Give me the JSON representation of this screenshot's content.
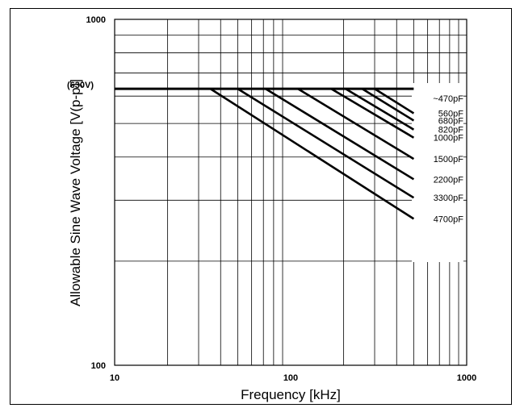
{
  "chart_data": {
    "type": "line",
    "title": "",
    "xlabel": "Frequency [kHz]",
    "ylabel": "Allowable Sine Wave Voltage [V(p-p)]",
    "x_scale": "log",
    "y_scale": "log",
    "xlim": [
      10,
      1000
    ],
    "ylim": [
      100,
      1000
    ],
    "x_ticks": [
      "10",
      "100",
      "1000"
    ],
    "y_ticks": [
      "100",
      "1000"
    ],
    "grid": true,
    "limit_line": {
      "label": "(630V)",
      "value": 630
    },
    "colors": {
      "line": "#000000",
      "grid": "#000000",
      "background": "#ffffff"
    },
    "series": [
      {
        "name": "~470pF",
        "points": [
          [
            10,
            630
          ],
          [
            500,
            630
          ]
        ]
      },
      {
        "name": "560pF",
        "points": [
          [
            300,
            630
          ],
          [
            500,
            535
          ]
        ]
      },
      {
        "name": "680pF",
        "points": [
          [
            255,
            630
          ],
          [
            500,
            510
          ]
        ]
      },
      {
        "name": "820pF",
        "points": [
          [
            205,
            630
          ],
          [
            500,
            480
          ]
        ]
      },
      {
        "name": "1000pF",
        "points": [
          [
            170,
            630
          ],
          [
            500,
            455
          ]
        ]
      },
      {
        "name": "1500pF",
        "points": [
          [
            110,
            630
          ],
          [
            500,
            395
          ]
        ]
      },
      {
        "name": "2200pF",
        "points": [
          [
            72,
            630
          ],
          [
            500,
            345
          ]
        ]
      },
      {
        "name": "3300pF",
        "points": [
          [
            50,
            630
          ],
          [
            500,
            305
          ]
        ]
      },
      {
        "name": "4700pF",
        "points": [
          [
            35,
            630
          ],
          [
            500,
            265
          ]
        ]
      }
    ]
  }
}
